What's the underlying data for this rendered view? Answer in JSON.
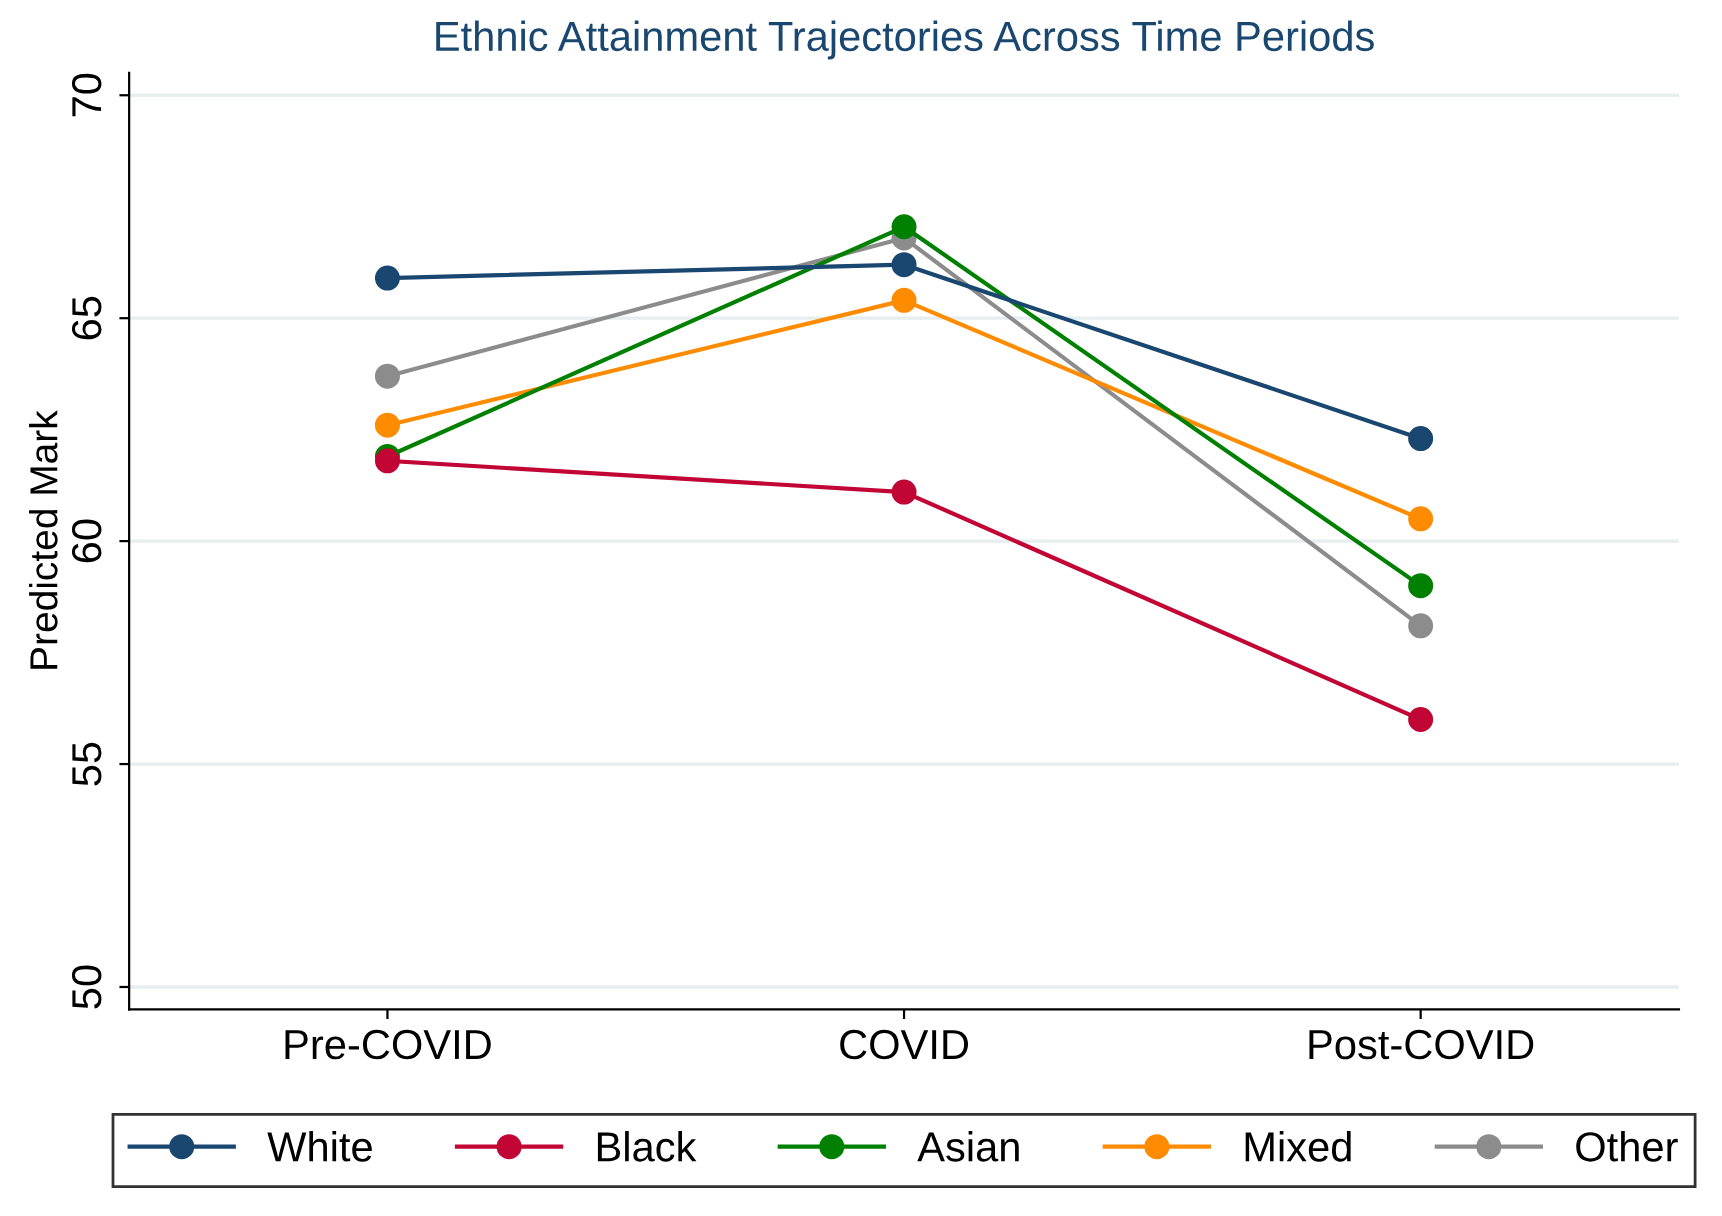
{
  "chart_data": {
    "type": "line",
    "title": "Ethnic Attainment Trajectories Across Time Periods",
    "ylabel": "Predicted Mark",
    "categories": [
      "Pre-COVID",
      "COVID",
      "Post-COVID"
    ],
    "series": [
      {
        "name": "White",
        "color": "#1a476f",
        "values": [
          65.9,
          66.2,
          62.3
        ]
      },
      {
        "name": "Black",
        "color": "#c10534",
        "values": [
          61.8,
          61.1,
          56.0
        ]
      },
      {
        "name": "Asian",
        "color": "#008000",
        "values": [
          61.9,
          67.05,
          59.0
        ]
      },
      {
        "name": "Mixed",
        "color": "#ff8c00",
        "values": [
          62.6,
          65.4,
          60.5
        ]
      },
      {
        "name": "Other",
        "color": "#8c8c8c",
        "values": [
          63.7,
          66.8,
          58.1
        ]
      }
    ],
    "ylim": [
      49.5,
      70.5
    ],
    "yticks": [
      50,
      55,
      60,
      65,
      70
    ],
    "grid": "y",
    "legend": "bottom",
    "marker": "circle",
    "line_style": "solid"
  }
}
